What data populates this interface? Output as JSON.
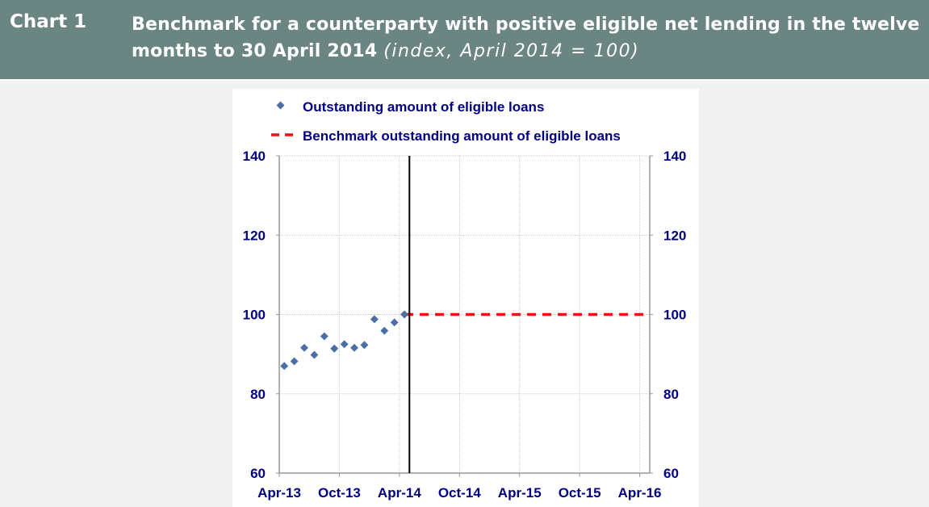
{
  "header": {
    "label": "Chart 1",
    "title": "Benchmark for a counterparty with positive eligible net lending in the twelve months to 30 April 2014",
    "subtitle": "(index, April 2014 = 100)"
  },
  "chart_data": {
    "type": "scatter",
    "title": "Benchmark for a counterparty with positive eligible net lending in the twelve months to 30 April 2014 (index, April 2014 = 100)",
    "xlabel": "",
    "ylabel": "",
    "x_tick_labels": [
      "Apr-13",
      "Oct-13",
      "Apr-14",
      "Oct-14",
      "Apr-15",
      "Oct-15",
      "Apr-16"
    ],
    "x_unit": "months since Apr-13",
    "x_ticks": [
      0,
      6,
      12,
      18,
      24,
      30,
      36
    ],
    "xlim": [
      0,
      37
    ],
    "ylim": [
      60,
      140
    ],
    "y_ticks": [
      60,
      80,
      100,
      120,
      140
    ],
    "y_tick_labels": [
      "60",
      "80",
      "100",
      "120",
      "140"
    ],
    "grid": true,
    "legend_position": "top",
    "vertical_marker_x": 13,
    "series": [
      {
        "name": "Outstanding amount of eligible loans",
        "kind": "diamond-markers",
        "color": "#4a6fa5",
        "x": [
          0.5,
          1.5,
          2.5,
          3.5,
          4.5,
          5.5,
          6.5,
          7.5,
          8.5,
          9.5,
          10.5,
          11.5,
          12.5
        ],
        "values": [
          87.0,
          88.2,
          91.6,
          89.8,
          94.5,
          91.4,
          92.5,
          91.6,
          92.3,
          98.8,
          95.9,
          98.0,
          100.0
        ]
      },
      {
        "name": "Benchmark outstanding amount of eligible loans",
        "kind": "dashed-line",
        "color": "#ee1111",
        "x": [
          12.5,
          36.5
        ],
        "values": [
          100,
          100
        ]
      }
    ]
  }
}
